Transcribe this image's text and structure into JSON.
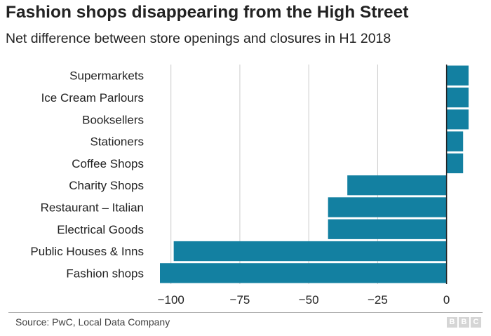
{
  "header": {
    "title": "Fashion shops disappearing from the High Street",
    "subtitle": "Net difference between store openings and closures in H1 2018"
  },
  "footer": {
    "source": "Source: PwC, Local Data Company",
    "logo": [
      "B",
      "B",
      "C"
    ]
  },
  "colors": {
    "bar": "#1380a1",
    "grid": "#cbcbcb",
    "axis": "#222222",
    "text": "#222222"
  },
  "chart_data": {
    "type": "bar",
    "orientation": "horizontal",
    "title": "Fashion shops disappearing from the High Street",
    "subtitle": "Net difference between store openings and closures in H1 2018",
    "categories": [
      "Supermarkets",
      "Ice Cream Parlours",
      "Booksellers",
      "Stationers",
      "Coffee Shops",
      "Charity Shops",
      "Restaurant – Italian",
      "Electrical Goods",
      "Public Houses & Inns",
      "Fashion shops"
    ],
    "values": [
      8,
      8,
      8,
      6,
      6,
      -36,
      -43,
      -43,
      -99,
      -104
    ],
    "xlim": [
      -104,
      9
    ],
    "xticks": [
      -100,
      -75,
      -50,
      -25,
      0
    ],
    "xtick_labels": [
      "−100",
      "−75",
      "−50",
      "−25",
      "0"
    ],
    "xlabel": "",
    "ylabel": "",
    "grid": true
  }
}
